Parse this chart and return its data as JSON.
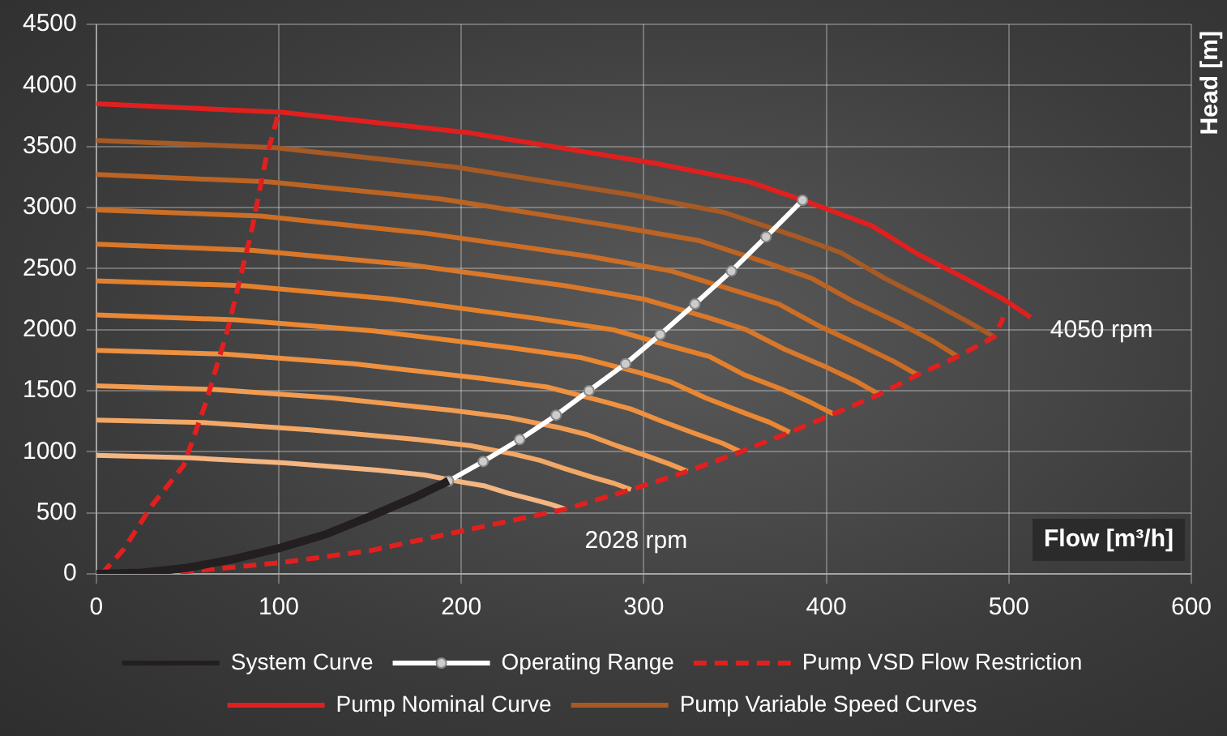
{
  "chart_data": {
    "type": "line",
    "xlabel": "Flow [m³/h]",
    "ylabel": "Head [m]",
    "xlim": [
      0,
      600
    ],
    "xticks": [
      0,
      100,
      200,
      300,
      400,
      500,
      600
    ],
    "ylim": [
      0,
      4500
    ],
    "yticks": [
      0,
      500,
      1000,
      1500,
      2000,
      2500,
      3000,
      3500,
      4000,
      4500
    ],
    "grid": true,
    "legend": "bottom",
    "annotations": [
      {
        "text": "4050 rpm",
        "x": 512,
        "y": 2100
      },
      {
        "text": "2028 rpm",
        "x": 257,
        "y": 530
      }
    ],
    "series": [
      {
        "name": "System Curve",
        "color": "#231f20",
        "line_style": "solid",
        "marker": "none",
        "x": [
          0,
          25,
          50,
          75,
          100,
          125,
          150,
          175,
          193
        ],
        "values": [
          0,
          10,
          50,
          120,
          210,
          320,
          470,
          630,
          760
        ]
      },
      {
        "name": "Operating Range",
        "color": "#ffffff",
        "line_style": "solid",
        "marker": "circle",
        "x": [
          193,
          212,
          232,
          252,
          270,
          290,
          309,
          328,
          348,
          367,
          387
        ],
        "values": [
          760,
          920,
          1100,
          1300,
          1500,
          1720,
          1960,
          2210,
          2480,
          2760,
          3060
        ]
      },
      {
        "name": "Pump VSD Flow Restriction",
        "color": "#e0201f",
        "line_style": "dashed",
        "marker": "none",
        "x": [
          3,
          15,
          30,
          48,
          60,
          72,
          85,
          93,
          100
        ],
        "values": [
          0,
          200,
          550,
          890,
          1400,
          2000,
          2800,
          3400,
          3780
        ]
      },
      {
        "color": "#e0201f",
        "line_style": "dashed",
        "marker": "none",
        "x": [
          0,
          50,
          100,
          150,
          200,
          257,
          293,
          324,
          353,
          380,
          404,
          429,
          450,
          472,
          492,
          497
        ],
        "values": [
          0,
          20,
          90,
          190,
          350,
          530,
          690,
          840,
          1000,
          1160,
          1310,
          1470,
          1630,
          1780,
          1940,
          2100
        ]
      },
      {
        "name": "Pump Nominal Curve",
        "color": "#e0201f",
        "line_style": "solid",
        "marker": "none",
        "x": [
          0,
          102,
          205,
          307,
          358,
          387,
          400,
          425,
          450,
          476,
          497,
          512
        ],
        "values": [
          3850,
          3780,
          3610,
          3360,
          3210,
          3060,
          2990,
          2850,
          2620,
          2420,
          2250,
          2100
        ]
      },
      {
        "name": "Pump Variable Speed Curves",
        "color": "#a65a25",
        "line_style": "solid",
        "marker": "none",
        "x": [
          0,
          98,
          197,
          295,
          344,
          384,
          408,
          432,
          457,
          477,
          492
        ],
        "values": [
          3550,
          3490,
          3330,
          3100,
          2960,
          2760,
          2630,
          2420,
          2230,
          2070,
          1940
        ]
      },
      {
        "color": "#bb6424",
        "line_style": "solid",
        "marker": "none",
        "x": [
          0,
          94,
          189,
          283,
          330,
          369,
          392,
          415,
          439,
          458,
          472
        ],
        "values": [
          3270,
          3210,
          3070,
          2850,
          2730,
          2540,
          2420,
          2230,
          2060,
          1910,
          1780
        ]
      },
      {
        "color": "#cc6e26",
        "line_style": "solid",
        "marker": "none",
        "x": [
          0,
          90,
          180,
          270,
          315,
          352,
          374,
          396,
          419,
          437,
          450
        ],
        "values": [
          2980,
          2930,
          2790,
          2600,
          2480,
          2310,
          2210,
          2030,
          1870,
          1740,
          1630
        ]
      },
      {
        "color": "#d9782a",
        "line_style": "solid",
        "marker": "none",
        "x": [
          0,
          85,
          172,
          257,
          300,
          335,
          356,
          377,
          399,
          416,
          429
        ],
        "values": [
          2700,
          2650,
          2530,
          2360,
          2250,
          2100,
          2000,
          1840,
          1700,
          1580,
          1470
        ]
      },
      {
        "color": "#e3802c",
        "line_style": "solid",
        "marker": "none",
        "x": [
          0,
          81,
          162,
          242,
          283,
          316,
          336,
          355,
          376,
          392,
          404
        ],
        "values": [
          2400,
          2360,
          2250,
          2090,
          2000,
          1860,
          1780,
          1630,
          1510,
          1400,
          1310
        ]
      },
      {
        "color": "#ea8733",
        "line_style": "solid",
        "marker": "none",
        "x": [
          0,
          76,
          152,
          228,
          266,
          297,
          315,
          334,
          353,
          369,
          380
        ],
        "values": [
          2120,
          2080,
          1990,
          1850,
          1770,
          1650,
          1570,
          1440,
          1330,
          1240,
          1160
        ]
      },
      {
        "color": "#ee9140",
        "line_style": "solid",
        "marker": "none",
        "x": [
          0,
          70,
          141,
          212,
          247,
          276,
          293,
          310,
          328,
          343,
          353
        ],
        "values": [
          1830,
          1800,
          1720,
          1600,
          1530,
          1420,
          1350,
          1250,
          1150,
          1070,
          1000
        ]
      },
      {
        "color": "#f09c52",
        "line_style": "solid",
        "marker": "none",
        "x": [
          0,
          65,
          130,
          194,
          226,
          253,
          269,
          285,
          301,
          314,
          324
        ],
        "values": [
          1540,
          1510,
          1440,
          1340,
          1280,
          1200,
          1140,
          1050,
          970,
          900,
          840
        ]
      },
      {
        "color": "#f2a866",
        "line_style": "solid",
        "marker": "none",
        "x": [
          0,
          58,
          117,
          176,
          205,
          229,
          243,
          257,
          272,
          284,
          293
        ],
        "values": [
          1260,
          1240,
          1180,
          1100,
          1050,
          980,
          930,
          860,
          790,
          740,
          690
        ]
      },
      {
        "color": "#f4b682",
        "line_style": "solid",
        "marker": "none",
        "x": [
          0,
          51,
          103,
          154,
          180,
          201,
          213,
          226,
          239,
          249,
          257
        ],
        "values": [
          970,
          950,
          910,
          850,
          810,
          750,
          720,
          660,
          610,
          570,
          530
        ]
      }
    ]
  }
}
